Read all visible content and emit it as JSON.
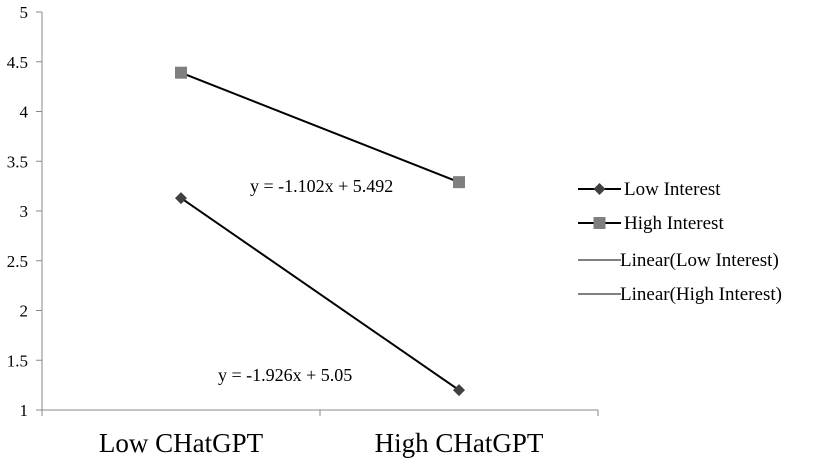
{
  "chart_data": {
    "type": "line",
    "categories": [
      "Low CHatGPT",
      "High CHatGPT"
    ],
    "series": [
      {
        "name": "Low Interest",
        "values": [
          3.13,
          1.2
        ],
        "color": "#404040",
        "marker": "diamond"
      },
      {
        "name": "High Interest",
        "values": [
          4.39,
          3.29
        ],
        "color": "#7f7f7f",
        "marker": "square"
      }
    ],
    "trendlines": [
      {
        "name": "Linear(Low Interest)",
        "equation": "y = -1.926x + 5.05"
      },
      {
        "name": "Linear(High Interest)",
        "equation": "y = -1.102x + 5.492"
      }
    ],
    "ylim": [
      1,
      5
    ],
    "yticks": [
      "1",
      "1.5",
      "2",
      "2.5",
      "3",
      "3.5",
      "4",
      "4.5",
      "5"
    ],
    "grid": false,
    "legend_position": "right",
    "title": "",
    "xlabel": "",
    "ylabel": ""
  }
}
